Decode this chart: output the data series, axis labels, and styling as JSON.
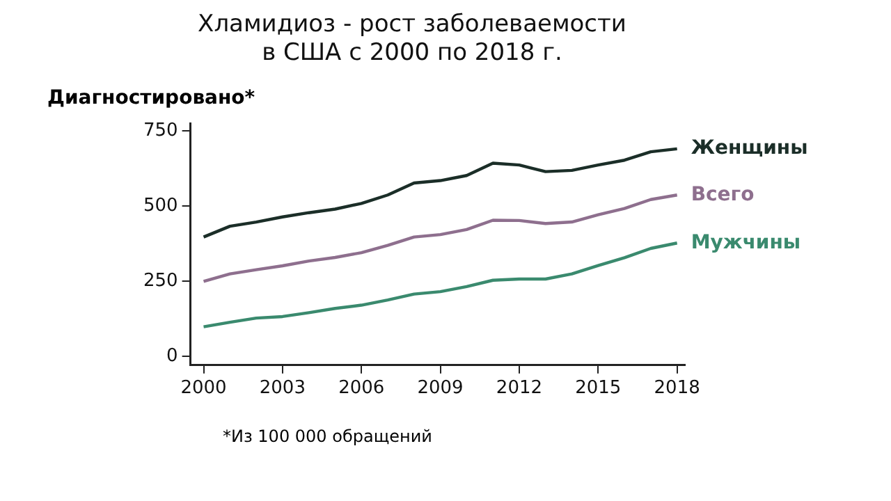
{
  "chart_data": {
    "type": "line",
    "title": [
      "Хламидиоз - рост заболеваемости",
      "в США с 2000 по 2018 г."
    ],
    "ylabel": "Диагностировано*",
    "annotations": [
      "*Из 100 000 обращений"
    ],
    "x": [
      2000,
      2001,
      2002,
      2003,
      2004,
      2005,
      2006,
      2007,
      2008,
      2009,
      2010,
      2011,
      2012,
      2013,
      2014,
      2015,
      2016,
      2017,
      2018
    ],
    "series": [
      {
        "name": "Женщины",
        "color": "#1b2e28",
        "values": [
          397,
          433,
          447,
          464,
          478,
          490,
          509,
          537,
          577,
          585,
          602,
          643,
          637,
          615,
          619,
          637,
          653,
          681,
          691
        ]
      },
      {
        "name": "Всего",
        "color": "#8e6f8e",
        "values": [
          249,
          274,
          288,
          301,
          317,
          329,
          345,
          369,
          397,
          405,
          422,
          453,
          452,
          442,
          447,
          471,
          492,
          522,
          537
        ]
      },
      {
        "name": "Мужчины",
        "color": "#3a8a6e",
        "values": [
          98,
          113,
          127,
          132,
          145,
          159,
          170,
          187,
          207,
          215,
          232,
          253,
          257,
          257,
          274,
          302,
          328,
          359,
          377
        ]
      }
    ],
    "xlim": [
      1999.5,
      2018.3
    ],
    "xticks": [
      2000,
      2003,
      2006,
      2009,
      2012,
      2015,
      2018
    ],
    "ylim": [
      -30,
      775
    ],
    "yticks": [
      0,
      250,
      500,
      750
    ],
    "grid": false,
    "legend": false,
    "marker": "none",
    "line_style": "solid"
  }
}
